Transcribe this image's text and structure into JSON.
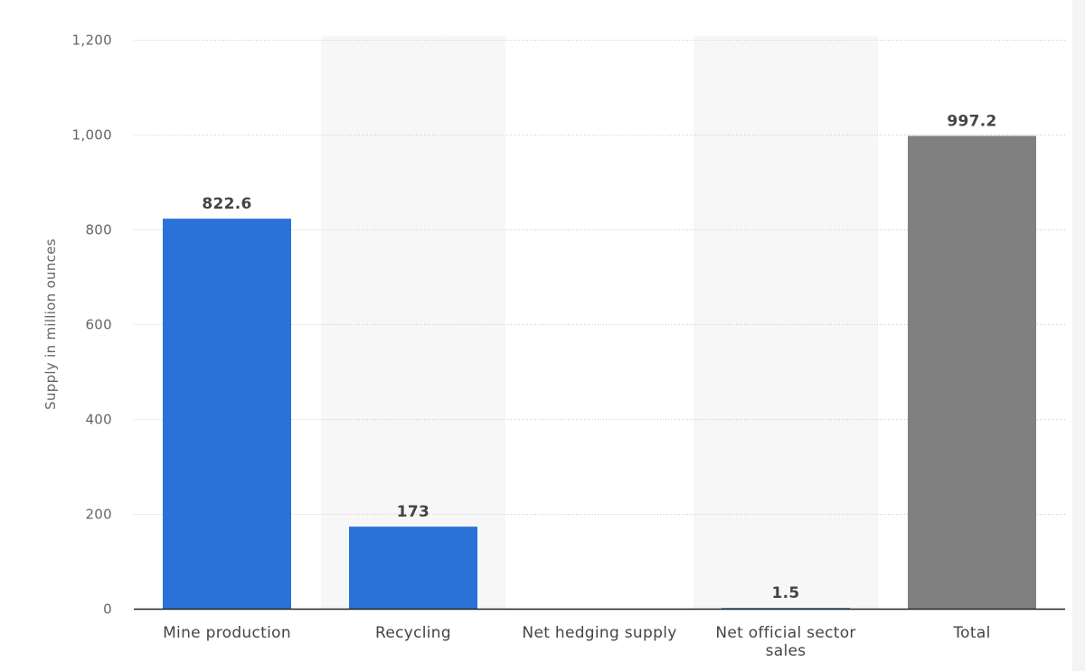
{
  "chart_data": {
    "type": "bar",
    "title": "",
    "xlabel": "",
    "ylabel": "Supply in million ounces",
    "ylim": [
      0,
      1200
    ],
    "yticks": [
      0,
      200,
      400,
      600,
      800,
      1000,
      1200
    ],
    "ytick_labels": [
      "0",
      "200",
      "400",
      "600",
      "800",
      "1,000",
      "1,200"
    ],
    "categories": [
      "Mine production",
      "Recycling",
      "Net hedging supply",
      "Net official sector sales",
      "Total"
    ],
    "values": [
      822.6,
      173,
      0,
      1.5,
      997.2
    ],
    "value_labels": [
      "822.6",
      "173",
      "",
      "1.5",
      "997.2"
    ],
    "bar_colors": [
      "#2a72d8",
      "#2a72d8",
      "#2a72d8",
      "#2a72d8",
      "#808080"
    ],
    "grid": true,
    "legend": "none"
  }
}
